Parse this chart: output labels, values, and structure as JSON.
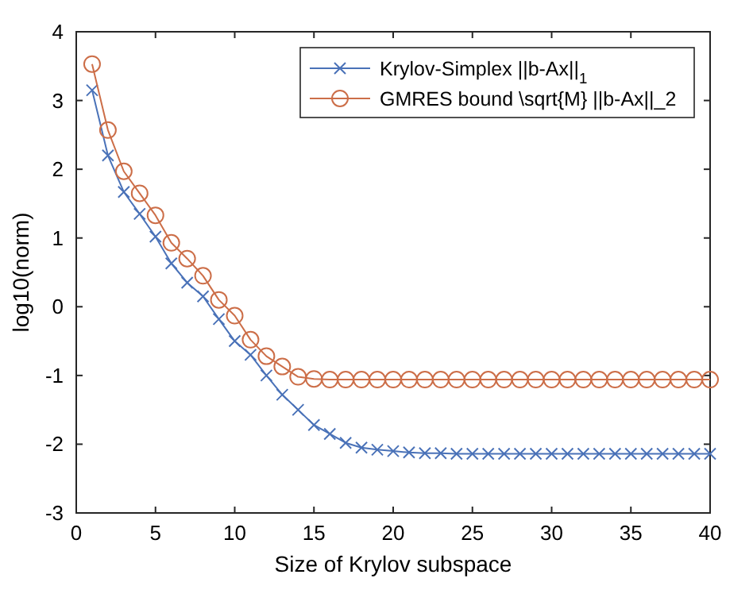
{
  "chart_data": {
    "type": "line",
    "xlabel": "Size of Krylov subspace",
    "ylabel": "log10(norm)",
    "x": [
      1,
      2,
      3,
      4,
      5,
      6,
      7,
      8,
      9,
      10,
      11,
      12,
      13,
      14,
      15,
      16,
      17,
      18,
      19,
      20,
      21,
      22,
      23,
      24,
      25,
      26,
      27,
      28,
      29,
      30,
      31,
      32,
      33,
      34,
      35,
      36,
      37,
      38,
      39,
      40
    ],
    "series": [
      {
        "name": "Krylov-Simplex ||b-Ax||$_{1}$",
        "color": "#4a72b8",
        "marker": "cross",
        "values": [
          3.15,
          2.2,
          1.67,
          1.35,
          1.02,
          0.63,
          0.35,
          0.15,
          -0.18,
          -0.5,
          -0.7,
          -1.0,
          -1.28,
          -1.5,
          -1.72,
          -1.85,
          -1.98,
          -2.05,
          -2.08,
          -2.1,
          -2.12,
          -2.13,
          -2.13,
          -2.14,
          -2.14,
          -2.14,
          -2.14,
          -2.14,
          -2.14,
          -2.14,
          -2.14,
          -2.14,
          -2.14,
          -2.14,
          -2.14,
          -2.14,
          -2.14,
          -2.14,
          -2.14,
          -2.14
        ]
      },
      {
        "name": "GMRES bound \\sqrt{M} ||b-Ax||_2",
        "color": "#cc6e48",
        "marker": "circle",
        "values": [
          3.53,
          2.57,
          1.97,
          1.65,
          1.33,
          0.93,
          0.7,
          0.45,
          0.1,
          -0.13,
          -0.48,
          -0.72,
          -0.87,
          -1.02,
          -1.05,
          -1.06,
          -1.06,
          -1.06,
          -1.06,
          -1.06,
          -1.06,
          -1.06,
          -1.06,
          -1.06,
          -1.06,
          -1.06,
          -1.06,
          -1.06,
          -1.06,
          -1.06,
          -1.06,
          -1.06,
          -1.06,
          -1.06,
          -1.06,
          -1.06,
          -1.06,
          -1.06,
          -1.06,
          -1.06
        ]
      }
    ],
    "xlim": [
      0,
      40
    ],
    "xticks": [
      0,
      5,
      10,
      15,
      20,
      25,
      30,
      35,
      40
    ],
    "ylim": [
      -3,
      4
    ],
    "yticks": [
      -3,
      -2,
      -1,
      0,
      1,
      2,
      3,
      4
    ],
    "grid": false,
    "legend": "top right"
  }
}
